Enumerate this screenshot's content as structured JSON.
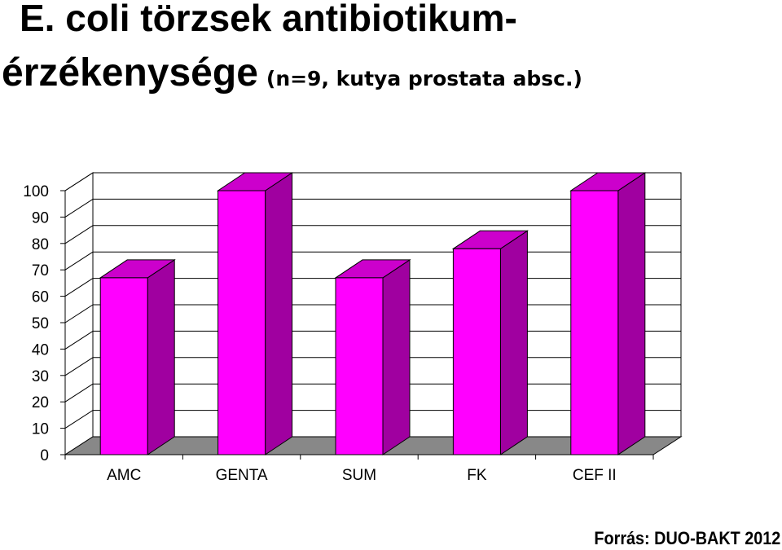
{
  "title": {
    "line1": "E. coli törzsek antibiotikum-",
    "line2": "érzékenysége",
    "subtitle": "(n=9, kutya prostata absc.)"
  },
  "source": "Forrás: DUO-BAKT 2012",
  "chart_data": {
    "type": "bar",
    "three_d": true,
    "categories": [
      "AMC",
      "GENTA",
      "SUM",
      "FK",
      "CEF II"
    ],
    "values": [
      67,
      100,
      67,
      78,
      100
    ],
    "ylim": [
      0,
      100
    ],
    "yticks": [
      "0",
      "10",
      "20",
      "30",
      "40",
      "50",
      "60",
      "70",
      "80",
      "90",
      "100"
    ],
    "grid": true,
    "bar_color": "#ff00ff",
    "bar_side_color": "#a000a0",
    "bar_top_color": "#cc00cc",
    "floor_color": "#888888"
  }
}
